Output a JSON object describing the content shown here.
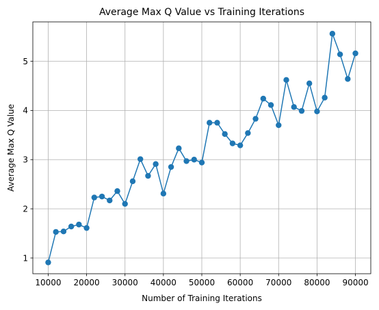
{
  "chart_data": {
    "type": "line",
    "title": "Average Max Q Value vs Training Iterations",
    "xlabel": "Number of Training Iterations",
    "ylabel": "Average Max Q Value",
    "xlim": [
      6000,
      94000
    ],
    "ylim": [
      0.68,
      5.8
    ],
    "xticks": [
      10000,
      20000,
      30000,
      40000,
      50000,
      60000,
      70000,
      80000,
      90000
    ],
    "yticks": [
      1,
      2,
      3,
      4,
      5
    ],
    "grid": true,
    "series_color": "#1f77b4",
    "markers": true,
    "x": [
      10000,
      12000,
      14000,
      16000,
      18000,
      20000,
      22000,
      24000,
      26000,
      28000,
      30000,
      32000,
      34000,
      36000,
      38000,
      40000,
      42000,
      44000,
      46000,
      48000,
      50000,
      52000,
      54000,
      56000,
      58000,
      60000,
      62000,
      64000,
      66000,
      68000,
      70000,
      72000,
      74000,
      76000,
      78000,
      80000,
      82000,
      84000,
      86000,
      88000,
      90000
    ],
    "y": [
      0.91,
      1.53,
      1.54,
      1.64,
      1.68,
      1.61,
      2.23,
      2.25,
      2.17,
      2.36,
      2.1,
      2.56,
      3.01,
      2.67,
      2.91,
      2.31,
      2.85,
      3.23,
      2.97,
      3.0,
      2.94,
      3.75,
      3.75,
      3.52,
      3.33,
      3.29,
      3.54,
      3.83,
      4.24,
      4.11,
      3.7,
      4.62,
      4.07,
      3.99,
      4.55,
      3.98,
      4.26,
      5.56,
      5.14,
      4.64,
      5.16
    ]
  }
}
